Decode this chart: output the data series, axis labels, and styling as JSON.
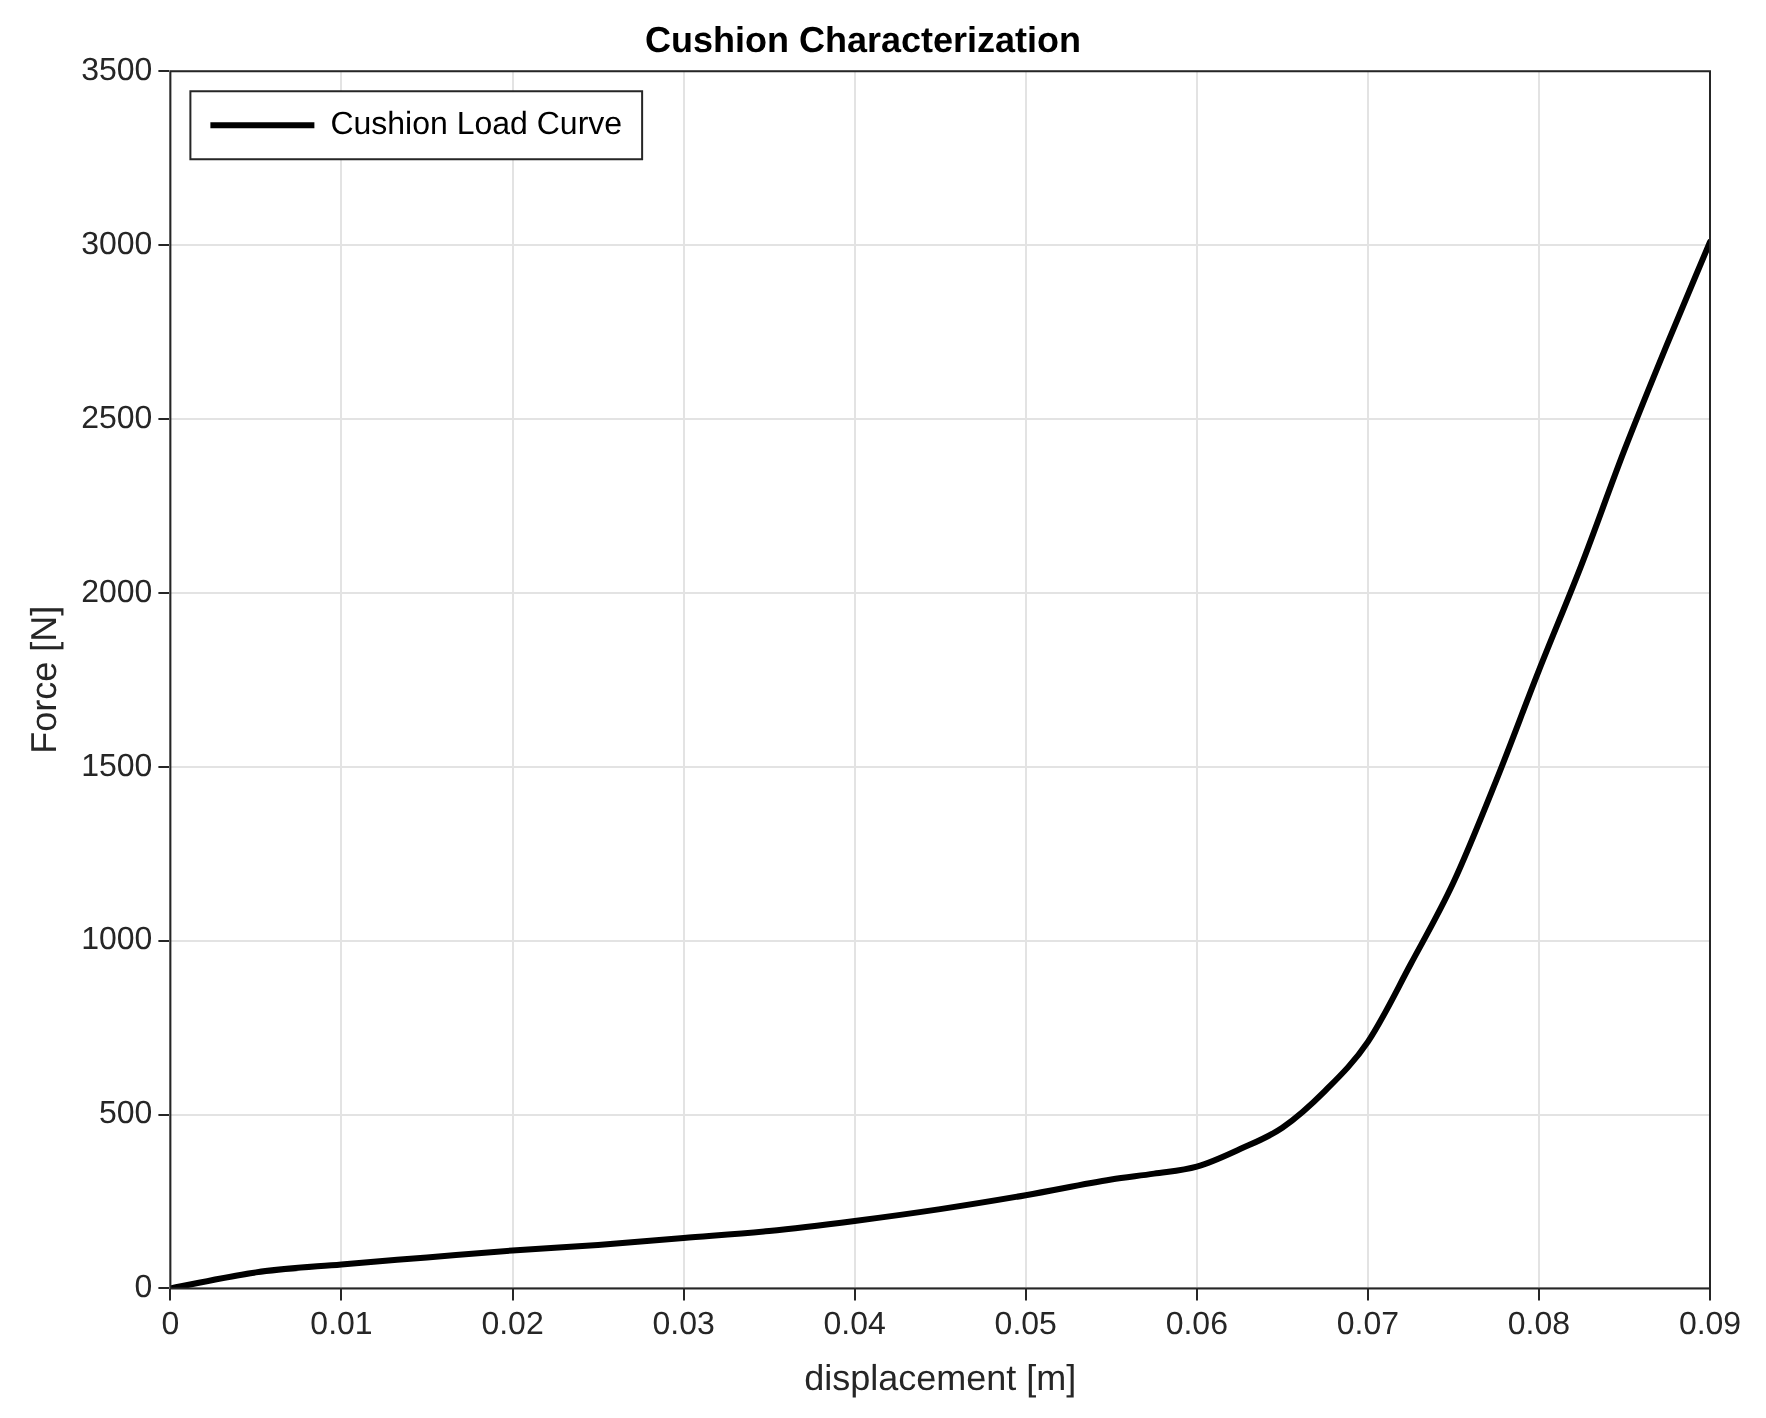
{
  "chart_data": {
    "type": "line",
    "title": "Cushion Characterization",
    "xlabel": "displacement [m]",
    "ylabel": "Force [N]",
    "x": [
      0,
      0.005,
      0.01,
      0.015,
      0.02,
      0.025,
      0.03,
      0.035,
      0.04,
      0.045,
      0.05,
      0.055,
      0.0575,
      0.06,
      0.0625,
      0.065,
      0.0675,
      0.07,
      0.0725,
      0.075,
      0.0775,
      0.08,
      0.0825,
      0.085,
      0.0875,
      0.09
    ],
    "series": [
      {
        "name": "Cushion Load Curve",
        "color": "#000000",
        "values": [
          0,
          46,
          69,
          89,
          109,
          125,
          145,
          165,
          194,
          228,
          268,
          313,
          330,
          350,
          400,
          462,
          568,
          709,
          932,
          1167,
          1460,
          1777,
          2082,
          2411,
          2716,
          3009
        ]
      }
    ],
    "xlim": [
      0,
      0.09
    ],
    "xticks": [
      0,
      0.01,
      0.02,
      0.03,
      0.04,
      0.05,
      0.06,
      0.07,
      0.08,
      0.09
    ],
    "ylim": [
      0,
      3500
    ],
    "yticks": [
      0,
      500,
      1000,
      1500,
      2000,
      2500,
      3000,
      3500
    ],
    "grid": true,
    "legend": "top left",
    "marker": "none",
    "line_style": "solid"
  }
}
